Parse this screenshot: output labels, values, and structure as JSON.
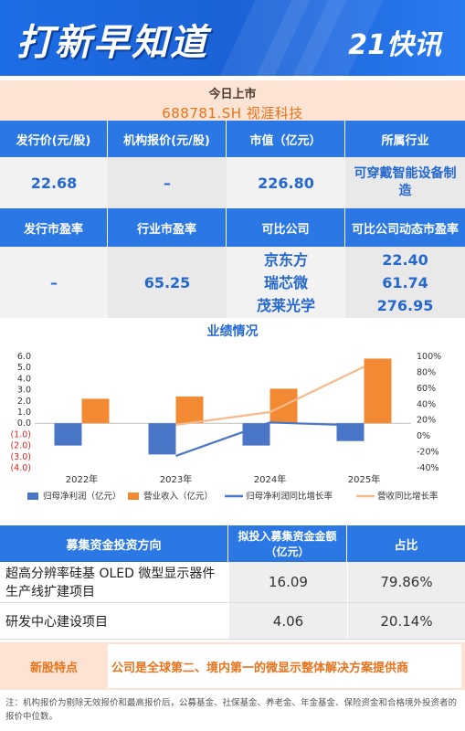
{
  "banner": {
    "title": "打新早知道",
    "brand": "21快讯"
  },
  "ipo": {
    "today_label": "今日上市",
    "stock": "688781.SH 视涯科技"
  },
  "table1": {
    "headers": [
      "发行价(元/股)",
      "机构报价(元/股)",
      "市值（亿元）",
      "所属行业"
    ],
    "values": [
      "22.68",
      "–",
      "226.80",
      "可穿戴智能设备制造"
    ]
  },
  "table2": {
    "headers": [
      "发行市盈率",
      "行业市盈率",
      "可比公司",
      "可比公司动态市盈率"
    ],
    "issue_pe": "–",
    "industry_pe": "65.25",
    "comparables": [
      {
        "name": "京东方",
        "pe": "22.40"
      },
      {
        "name": "瑞芯微",
        "pe": "61.74"
      },
      {
        "name": "茂莱光学",
        "pe": "276.95"
      }
    ]
  },
  "chart_data": {
    "type": "bar",
    "title": "业绩情况",
    "categories": [
      "2022年",
      "2023年",
      "2024年",
      "2025年"
    ],
    "left_axis": {
      "ylim": [
        -4.0,
        6.0
      ],
      "ticks": [
        "6.0",
        "5.0",
        "4.0",
        "3.0",
        "2.0",
        "1.0",
        "0.0",
        "(1.0)",
        "(2.0)",
        "(3.0)",
        "(4.0)"
      ]
    },
    "right_axis": {
      "ylim": [
        -40,
        100
      ],
      "ticks": [
        "100%",
        "80%",
        "60%",
        "40%",
        "20%",
        "0%",
        "-20%",
        "-40%"
      ]
    },
    "series": [
      {
        "name": "归母净利润（亿元）",
        "type": "bar",
        "axis": "left",
        "color": "#4a76c8",
        "values": [
          -2.0,
          -2.8,
          -2.0,
          -1.6
        ]
      },
      {
        "name": "营业收入（亿元）",
        "type": "bar",
        "axis": "left",
        "color": "#f28a33",
        "values": [
          2.2,
          2.4,
          3.1,
          5.8
        ]
      },
      {
        "name": "归母净利润同比增长率",
        "type": "line",
        "axis": "right",
        "color": "#4a76c8",
        "values": [
          null,
          -25,
          17,
          13
        ]
      },
      {
        "name": "营收同比增长率",
        "type": "line",
        "axis": "right",
        "color": "#f6b98a",
        "values": [
          null,
          14,
          30,
          87
        ]
      }
    ],
    "legend_position": "bottom"
  },
  "funds": {
    "headers": [
      "募集资金投资方向",
      "拟投入募集资金金额（亿元）",
      "占比"
    ],
    "rows": [
      {
        "name": "超高分辨率硅基 OLED 微型显示器件生产线扩建项目",
        "amount": "16.09",
        "ratio": "79.86%"
      },
      {
        "name": "研发中心建设项目",
        "amount": "4.06",
        "ratio": "20.14%"
      }
    ]
  },
  "feature": {
    "label": "新股特点",
    "text": "公司是全球第二、境内第一的微显示整体解决方案提供商"
  },
  "note": "注：机构报价为剔除无效报价和最高报价后，公募基金、社保基金、养老金、年金基金、保险资金和合格境外投资者的报价中位数。",
  "colors": {
    "blue": "#2b77e4",
    "orange": "#e8731c",
    "peach": "#fde3d3"
  }
}
